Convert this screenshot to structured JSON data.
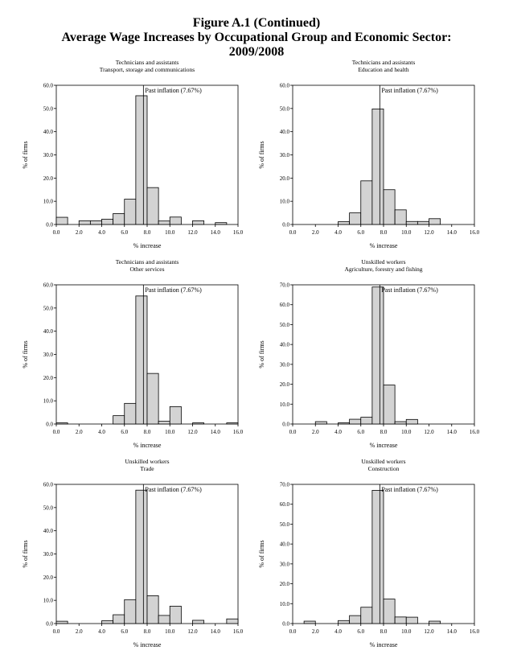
{
  "figure": {
    "title_line1": "Figure A.1 (Continued)",
    "title_line2": "Average Wage Increases by Occupational Group and Economic Sector:",
    "title_line3": "2009/2008"
  },
  "chart_data": [
    {
      "type": "bar",
      "title": "Technicians and assistants",
      "subtitle": "Transport, storage and communications",
      "xlabel": "% increase",
      "ylabel": "% of firms",
      "bin_width": 1,
      "bin_starts": [
        0,
        1,
        2,
        3,
        4,
        5,
        6,
        7,
        8,
        9,
        10,
        11,
        12,
        13,
        14,
        15
      ],
      "values": [
        3.1,
        0,
        1.6,
        1.6,
        2.3,
        4.7,
        10.9,
        55.5,
        15.9,
        1.5,
        3.2,
        0,
        1.6,
        0,
        0.8,
        0
      ],
      "xlim": [
        0,
        16
      ],
      "ylim": [
        0,
        60
      ],
      "xticks": [
        "0.0",
        "2.0",
        "4.0",
        "6.0",
        "8.0",
        "10.0",
        "12.0",
        "14.0",
        "16.0"
      ],
      "yticks": [
        "0.0",
        "10.0",
        "20.0",
        "30.0",
        "40.0",
        "50.0",
        "60.0"
      ],
      "annotation": {
        "label": "Past inflation (7.67%)",
        "x": 7.67
      }
    },
    {
      "type": "bar",
      "title": "Technicians and assistants",
      "subtitle": "Education and health",
      "xlabel": "% increase",
      "ylabel": "% of firms",
      "bin_width": 1,
      "bin_starts": [
        0,
        1,
        2,
        3,
        4,
        5,
        6,
        7,
        8,
        9,
        10,
        11,
        12,
        13,
        14,
        15
      ],
      "values": [
        0,
        0,
        0,
        0,
        1.2,
        5,
        18.8,
        49.8,
        15,
        6.3,
        1.3,
        1.3,
        2.5,
        0,
        0,
        0
      ],
      "xlim": [
        0,
        16
      ],
      "ylim": [
        0,
        60
      ],
      "xticks": [
        "0.0",
        "2.0",
        "4.0",
        "6.0",
        "8.0",
        "10.0",
        "12.0",
        "14.0",
        "16.0"
      ],
      "yticks": [
        "0.0",
        "10.0",
        "20.0",
        "30.0",
        "40.0",
        "50.0",
        "60.0"
      ],
      "annotation": {
        "label": "Past inflation (7.67%)",
        "x": 7.67
      }
    },
    {
      "type": "bar",
      "title": "Technicians and assistants",
      "subtitle": "Other services",
      "xlabel": "% increase",
      "ylabel": "% of firms",
      "bin_width": 1,
      "bin_starts": [
        0,
        1,
        2,
        3,
        4,
        5,
        6,
        7,
        8,
        9,
        10,
        11,
        12,
        13,
        14,
        15
      ],
      "values": [
        0.5,
        0,
        0,
        0,
        0,
        3.6,
        8.9,
        55.2,
        21.8,
        1.2,
        7.5,
        0,
        0.5,
        0,
        0,
        0.5
      ],
      "xlim": [
        0,
        16
      ],
      "ylim": [
        0,
        60
      ],
      "xticks": [
        "0.0",
        "2.0",
        "4.0",
        "6.0",
        "8.0",
        "10.0",
        "12.0",
        "14.0",
        "16.0"
      ],
      "yticks": [
        "0.0",
        "10.0",
        "20.0",
        "30.0",
        "40.0",
        "50.0",
        "60.0"
      ],
      "annotation": {
        "label": "Past inflation (7.67%)",
        "x": 7.67
      }
    },
    {
      "type": "bar",
      "title": "Unskilled workers",
      "subtitle": "Agriculture, forestry and fishing",
      "xlabel": "% increase",
      "ylabel": "% of firms",
      "bin_width": 1,
      "bin_starts": [
        0,
        1,
        2,
        3,
        4,
        5,
        6,
        7,
        8,
        9,
        10,
        11,
        12,
        13,
        14,
        15
      ],
      "values": [
        0,
        0,
        1.2,
        0,
        0.6,
        2.4,
        3.4,
        68.9,
        19.6,
        1.2,
        2.3,
        0,
        0,
        0,
        0,
        0
      ],
      "xlim": [
        0,
        16
      ],
      "ylim": [
        0,
        70
      ],
      "xticks": [
        "0.0",
        "2.0",
        "4.0",
        "6.0",
        "8.0",
        "10.0",
        "12.0",
        "14.0",
        "16.0"
      ],
      "yticks": [
        "0.0",
        "10.0",
        "20.0",
        "30.0",
        "40.0",
        "50.0",
        "60.0",
        "70.0"
      ],
      "annotation": {
        "label": "Past inflation (7.67%)",
        "x": 7.67
      }
    },
    {
      "type": "bar",
      "title": "Unskilled workers",
      "subtitle": "Trade",
      "xlabel": "% increase",
      "ylabel": "% of firms",
      "bin_width": 1,
      "bin_starts": [
        0,
        1,
        2,
        3,
        4,
        5,
        6,
        7,
        8,
        9,
        10,
        11,
        12,
        13,
        14,
        15
      ],
      "values": [
        1,
        0,
        0,
        0,
        1.2,
        3.8,
        10.3,
        57.5,
        12,
        3.5,
        7.5,
        0,
        1.4,
        0,
        0,
        2
      ],
      "xlim": [
        0,
        16
      ],
      "ylim": [
        0,
        60
      ],
      "xticks": [
        "0.0",
        "2.0",
        "4.0",
        "6.0",
        "8.0",
        "10.0",
        "12.0",
        "14.0",
        "16.0"
      ],
      "yticks": [
        "0.0",
        "10.0",
        "20.0",
        "30.0",
        "40.0",
        "50.0",
        "60.0"
      ],
      "annotation": {
        "label": "Past inflation (7.67%)",
        "x": 7.67
      }
    },
    {
      "type": "bar",
      "title": "Unskilled workers",
      "subtitle": "Construction",
      "xlabel": "% increase",
      "ylabel": "% of firms",
      "bin_width": 1,
      "bin_starts": [
        0,
        1,
        2,
        3,
        4,
        5,
        6,
        7,
        8,
        9,
        10,
        11,
        12,
        13,
        14,
        15
      ],
      "values": [
        0,
        1.2,
        0,
        0,
        1.5,
        4,
        8.2,
        67,
        12.3,
        3.3,
        3.2,
        0,
        1.2,
        0,
        0,
        0
      ],
      "xlim": [
        0,
        16
      ],
      "ylim": [
        0,
        70
      ],
      "xticks": [
        "0.0",
        "2.0",
        "4.0",
        "6.0",
        "8.0",
        "10.0",
        "12.0",
        "14.0",
        "16.0"
      ],
      "yticks": [
        "0.0",
        "10.0",
        "20.0",
        "30.0",
        "40.0",
        "50.0",
        "60.0",
        "70.0"
      ],
      "annotation": {
        "label": "Past inflation (7.67%)",
        "x": 7.67
      }
    }
  ]
}
